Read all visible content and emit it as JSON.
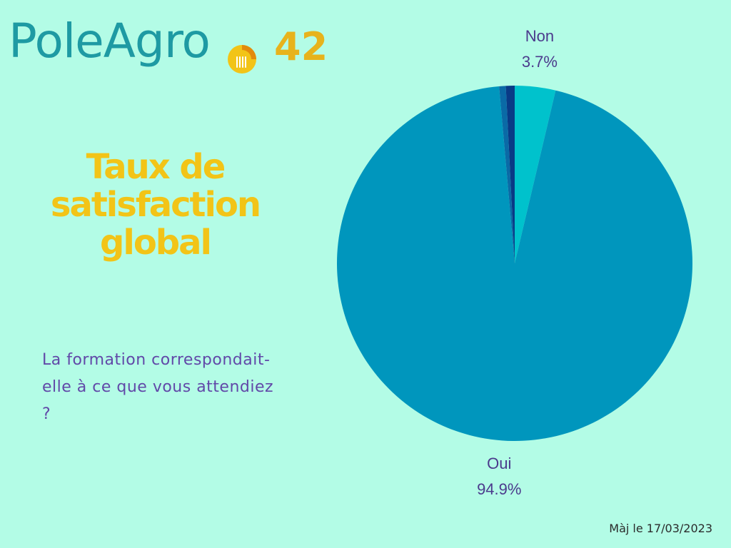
{
  "logo": {
    "brand": "PoleAgro",
    "number": "42",
    "colors": {
      "text": "#1e9aa3",
      "number": "#e7b31c",
      "emblem": "#f2c417"
    }
  },
  "title": "Taux de satisfaction global",
  "question": "La formation correspondait-elle à ce que vous attendiez ?",
  "update_note": "Màj le 17/03/2023",
  "colors": {
    "background": "#b3fce6",
    "title": "#f2c417",
    "question": "#6148a8",
    "label": "#4b3a8c"
  },
  "chart_data": {
    "type": "pie",
    "slices": [
      {
        "label": "Non",
        "value": 3.7,
        "display": "3.7%",
        "color": "#00c2cc",
        "show_label": true
      },
      {
        "label": "Oui",
        "value": 94.9,
        "display": "94.9%",
        "color": "#0096bd",
        "show_label": true
      },
      {
        "label": "",
        "value": 0.6,
        "display": "",
        "color": "#0a6aa6",
        "show_label": false
      },
      {
        "label": "",
        "value": 0.8,
        "display": "",
        "color": "#093a86",
        "show_label": false
      }
    ],
    "start": "top",
    "direction": "clockwise"
  }
}
